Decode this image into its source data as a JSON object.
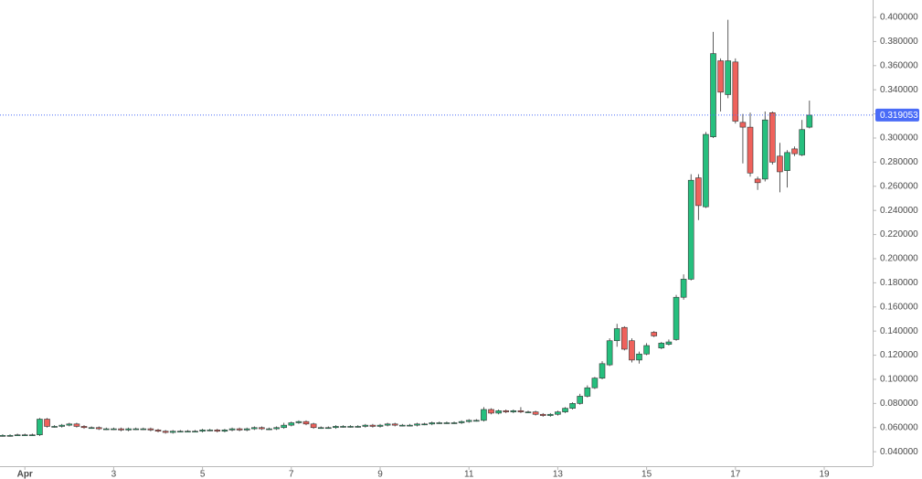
{
  "chart_data": {
    "type": "candlestick",
    "up_color": "#26bf7e",
    "down_color": "#ef625c",
    "xlim": [
      0.44,
      20.09
    ],
    "ylim": [
      0.028,
      0.4144
    ],
    "xticks": [
      {
        "value": 1,
        "label": "Apr"
      },
      3,
      5,
      7,
      9,
      11,
      13,
      15,
      17,
      19
    ],
    "yticks": [
      {
        "value": 0.04,
        "label": "0.040000"
      },
      {
        "value": 0.06,
        "label": "0.060000"
      },
      {
        "value": 0.08,
        "label": "0.080000"
      },
      {
        "value": 0.1,
        "label": "0.100000"
      },
      {
        "value": 0.12,
        "label": "0.120000"
      },
      {
        "value": 0.14,
        "label": "0.140000"
      },
      {
        "value": 0.16,
        "label": "0.160000"
      },
      {
        "value": 0.18,
        "label": "0.180000"
      },
      {
        "value": 0.2,
        "label": "0.200000"
      },
      {
        "value": 0.22,
        "label": "0.220000"
      },
      {
        "value": 0.24,
        "label": "0.240000"
      },
      {
        "value": 0.26,
        "label": "0.260000"
      },
      {
        "value": 0.28,
        "label": "0.280000"
      },
      {
        "value": 0.3,
        "label": "0.300000"
      },
      {
        "value": 0.32,
        "label": "0.320000"
      },
      {
        "value": 0.34,
        "label": "0.340000"
      },
      {
        "value": 0.36,
        "label": "0.360000"
      },
      {
        "value": 0.38,
        "label": "0.380000"
      },
      {
        "value": 0.4,
        "label": "0.400000"
      }
    ],
    "last_price": {
      "value": 0.319053,
      "label": "0.319053",
      "color": "#4a6cf7"
    },
    "x": [
      0.5,
      0.667,
      0.833,
      1,
      1.167,
      1.333,
      1.5,
      1.667,
      1.833,
      2,
      2.167,
      2.333,
      2.5,
      2.667,
      2.833,
      3,
      3.167,
      3.333,
      3.5,
      3.667,
      3.833,
      4,
      4.167,
      4.333,
      4.5,
      4.667,
      4.833,
      5,
      5.167,
      5.333,
      5.5,
      5.667,
      5.833,
      6,
      6.167,
      6.333,
      6.5,
      6.667,
      6.833,
      7,
      7.167,
      7.333,
      7.5,
      7.667,
      7.833,
      8,
      8.167,
      8.333,
      8.5,
      8.667,
      8.833,
      9,
      9.167,
      9.333,
      9.5,
      9.667,
      9.833,
      10,
      10.167,
      10.333,
      10.5,
      10.667,
      10.833,
      11,
      11.167,
      11.333,
      11.5,
      11.667,
      11.833,
      12,
      12.167,
      12.333,
      12.5,
      12.667,
      12.833,
      13,
      13.167,
      13.333,
      13.5,
      13.667,
      13.833,
      14,
      14.167,
      14.333,
      14.5,
      14.667,
      14.833,
      15,
      15.167,
      15.333,
      15.5,
      15.667,
      15.833,
      16,
      16.167,
      16.333,
      16.5,
      16.667,
      16.833,
      17,
      17.167,
      17.333,
      17.5,
      17.667,
      17.833,
      18,
      18.167,
      18.333,
      18.5,
      18.667
    ],
    "open": [
      0.0535,
      0.0535,
      0.0535,
      0.054,
      0.054,
      0.054,
      0.067,
      0.061,
      0.061,
      0.062,
      0.063,
      0.061,
      0.06,
      0.06,
      0.059,
      0.059,
      0.059,
      0.058,
      0.059,
      0.059,
      0.059,
      0.058,
      0.057,
      0.056,
      0.057,
      0.057,
      0.057,
      0.057,
      0.058,
      0.058,
      0.057,
      0.058,
      0.059,
      0.058,
      0.059,
      0.06,
      0.059,
      0.059,
      0.06,
      0.062,
      0.064,
      0.065,
      0.063,
      0.06,
      0.06,
      0.06,
      0.061,
      0.061,
      0.061,
      0.061,
      0.062,
      0.061,
      0.062,
      0.063,
      0.062,
      0.062,
      0.062,
      0.063,
      0.063,
      0.064,
      0.064,
      0.064,
      0.064,
      0.065,
      0.066,
      0.066,
      0.075,
      0.072,
      0.074,
      0.073,
      0.074,
      0.073,
      0.073,
      0.071,
      0.07,
      0.071,
      0.073,
      0.076,
      0.08,
      0.086,
      0.093,
      0.101,
      0.112,
      0.132,
      0.143,
      0.132,
      0.116,
      0.121,
      0.139,
      0.126,
      0.129,
      0.133,
      0.168,
      0.183,
      0.267,
      0.243,
      0.301,
      0.364,
      0.336,
      0.363,
      0.313,
      0.309,
      0.266,
      0.266,
      0.321,
      0.285,
      0.273,
      0.291,
      0.286,
      0.309
    ],
    "high": [
      0.0545,
      0.0545,
      0.055,
      0.055,
      0.055,
      0.068,
      0.068,
      0.062,
      0.063,
      0.064,
      0.064,
      0.062,
      0.061,
      0.061,
      0.06,
      0.06,
      0.06,
      0.06,
      0.06,
      0.06,
      0.06,
      0.059,
      0.058,
      0.058,
      0.058,
      0.058,
      0.058,
      0.059,
      0.059,
      0.059,
      0.059,
      0.06,
      0.06,
      0.06,
      0.061,
      0.061,
      0.06,
      0.061,
      0.064,
      0.065,
      0.066,
      0.066,
      0.064,
      0.061,
      0.061,
      0.062,
      0.062,
      0.062,
      0.062,
      0.063,
      0.063,
      0.063,
      0.064,
      0.064,
      0.063,
      0.063,
      0.064,
      0.064,
      0.065,
      0.065,
      0.065,
      0.065,
      0.066,
      0.067,
      0.067,
      0.077,
      0.076,
      0.075,
      0.075,
      0.075,
      0.077,
      0.074,
      0.074,
      0.072,
      0.072,
      0.074,
      0.077,
      0.081,
      0.088,
      0.095,
      0.102,
      0.115,
      0.134,
      0.146,
      0.144,
      0.134,
      0.123,
      0.13,
      0.14,
      0.131,
      0.133,
      0.17,
      0.187,
      0.27,
      0.27,
      0.305,
      0.388,
      0.366,
      0.398,
      0.366,
      0.32,
      0.321,
      0.268,
      0.322,
      0.322,
      0.296,
      0.29,
      0.293,
      0.315,
      0.331
    ],
    "low": [
      0.0525,
      0.0525,
      0.053,
      0.053,
      0.053,
      0.053,
      0.06,
      0.06,
      0.06,
      0.061,
      0.06,
      0.059,
      0.059,
      0.058,
      0.058,
      0.058,
      0.057,
      0.057,
      0.058,
      0.058,
      0.057,
      0.056,
      0.055,
      0.055,
      0.056,
      0.056,
      0.056,
      0.056,
      0.057,
      0.056,
      0.056,
      0.057,
      0.057,
      0.057,
      0.058,
      0.058,
      0.058,
      0.058,
      0.059,
      0.061,
      0.063,
      0.062,
      0.059,
      0.059,
      0.059,
      0.059,
      0.06,
      0.06,
      0.06,
      0.06,
      0.06,
      0.06,
      0.061,
      0.061,
      0.061,
      0.061,
      0.061,
      0.062,
      0.062,
      0.063,
      0.063,
      0.063,
      0.063,
      0.064,
      0.065,
      0.065,
      0.071,
      0.071,
      0.072,
      0.072,
      0.072,
      0.072,
      0.07,
      0.069,
      0.069,
      0.07,
      0.072,
      0.075,
      0.079,
      0.085,
      0.092,
      0.1,
      0.111,
      0.127,
      0.124,
      0.114,
      0.113,
      0.12,
      0.135,
      0.125,
      0.128,
      0.132,
      0.166,
      0.182,
      0.232,
      0.242,
      0.3,
      0.322,
      0.333,
      0.312,
      0.279,
      0.268,
      0.257,
      0.264,
      0.278,
      0.255,
      0.259,
      0.285,
      0.285,
      0.308
    ],
    "close": [
      0.0535,
      0.0535,
      0.054,
      0.054,
      0.054,
      0.067,
      0.061,
      0.061,
      0.062,
      0.063,
      0.061,
      0.06,
      0.06,
      0.059,
      0.059,
      0.059,
      0.058,
      0.059,
      0.059,
      0.059,
      0.058,
      0.057,
      0.056,
      0.057,
      0.057,
      0.057,
      0.057,
      0.058,
      0.058,
      0.057,
      0.058,
      0.059,
      0.058,
      0.059,
      0.06,
      0.059,
      0.059,
      0.06,
      0.062,
      0.064,
      0.065,
      0.063,
      0.06,
      0.06,
      0.06,
      0.061,
      0.061,
      0.061,
      0.061,
      0.062,
      0.061,
      0.062,
      0.063,
      0.062,
      0.062,
      0.062,
      0.063,
      0.063,
      0.064,
      0.064,
      0.064,
      0.064,
      0.065,
      0.066,
      0.066,
      0.075,
      0.072,
      0.074,
      0.073,
      0.074,
      0.073,
      0.073,
      0.071,
      0.07,
      0.071,
      0.073,
      0.076,
      0.08,
      0.086,
      0.093,
      0.101,
      0.113,
      0.132,
      0.142,
      0.125,
      0.116,
      0.121,
      0.128,
      0.136,
      0.13,
      0.131,
      0.168,
      0.183,
      0.265,
      0.244,
      0.303,
      0.37,
      0.338,
      0.364,
      0.314,
      0.309,
      0.271,
      0.263,
      0.315,
      0.28,
      0.272,
      0.288,
      0.287,
      0.307,
      0.319
    ]
  }
}
